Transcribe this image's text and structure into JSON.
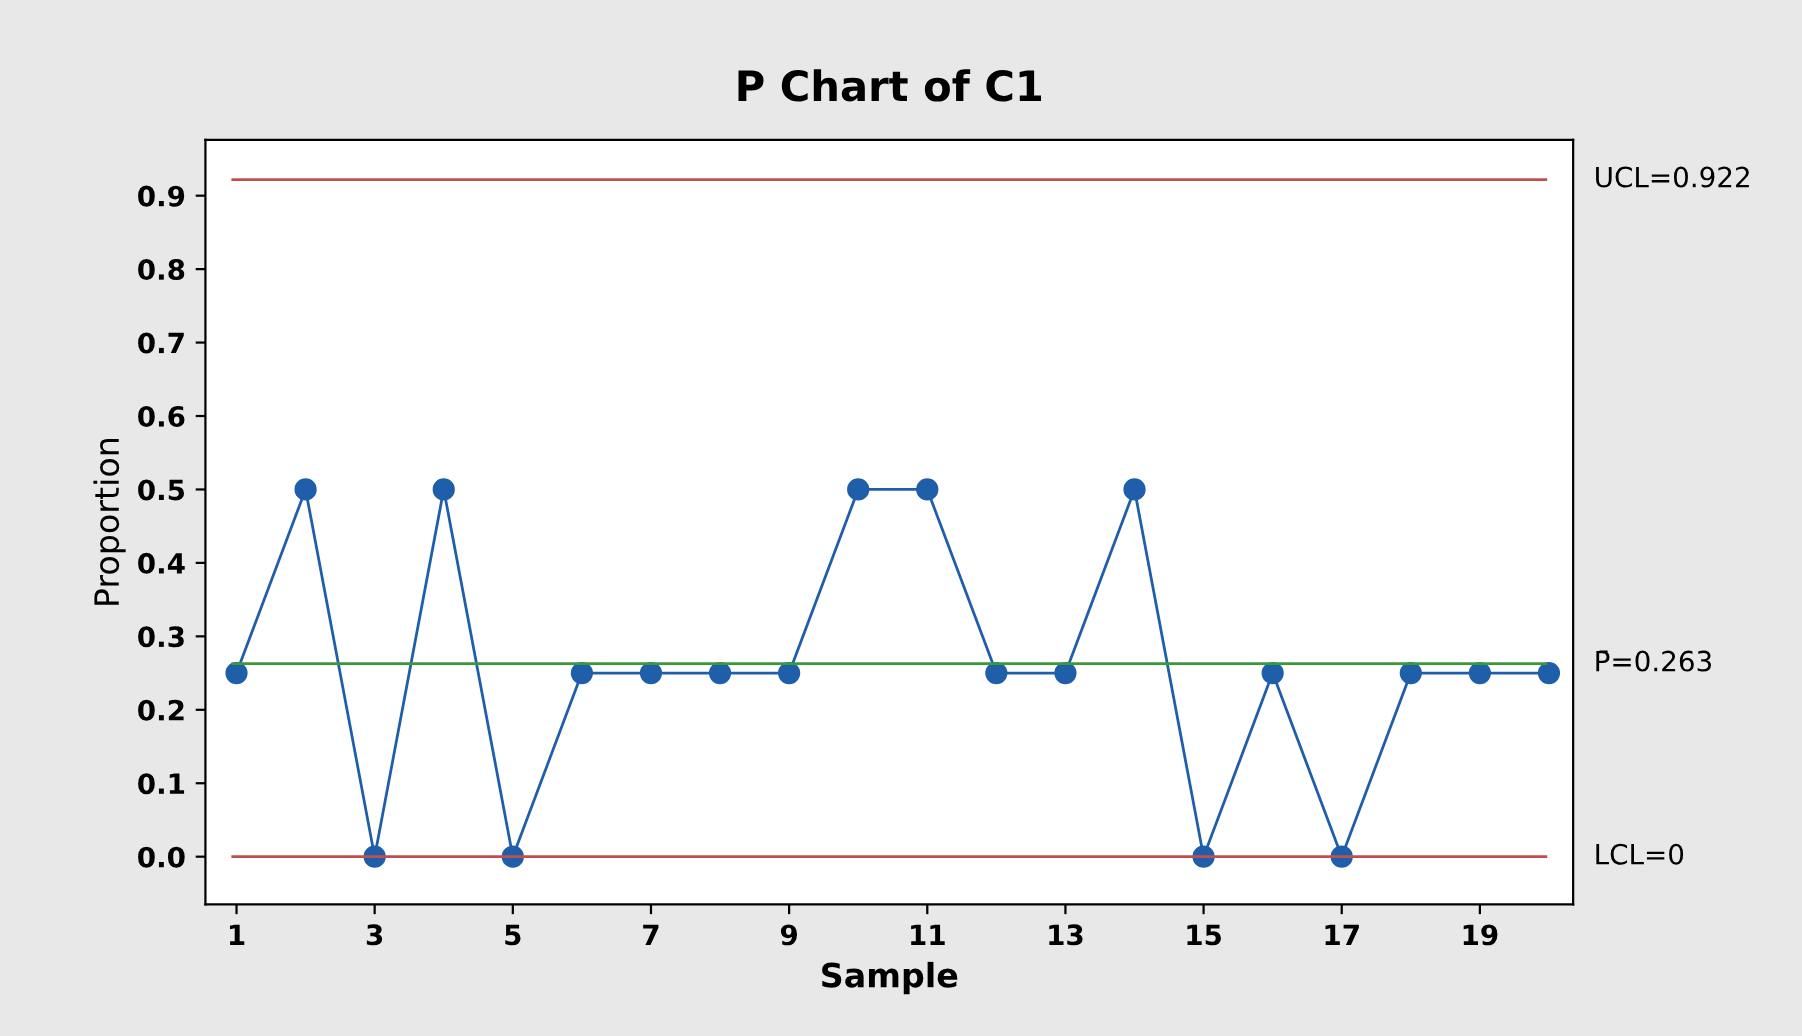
{
  "chart_data": {
    "type": "line",
    "title": "P Chart of C1",
    "xlabel": "Sample",
    "ylabel": "Proportion",
    "x": [
      1,
      2,
      3,
      4,
      5,
      6,
      7,
      8,
      9,
      10,
      11,
      12,
      13,
      14,
      15,
      16,
      17,
      18,
      19,
      20
    ],
    "series": [
      {
        "color": "#1f5faa",
        "values": [
          0.25,
          0.5,
          0,
          0.5,
          0,
          0.25,
          0.25,
          0.25,
          0.25,
          0.5,
          0.5,
          0.25,
          0.25,
          0.5,
          0,
          0.25,
          0,
          0.25,
          0.25,
          0.25
        ]
      }
    ],
    "xlim": [
      0.55,
      20.35
    ],
    "xticks": [
      1,
      3,
      5,
      7,
      9,
      11,
      13,
      15,
      17,
      19
    ],
    "ylim": [
      -0.065,
      0.976
    ],
    "yticks": [
      {
        "value": 0,
        "label": "0.0"
      },
      0.1,
      0.2,
      0.3,
      0.4,
      0.5,
      0.6,
      0.7,
      0.8,
      0.9
    ],
    "ref_lines": [
      {
        "axis": "y",
        "value": 0.922,
        "label": "UCL=0.922",
        "color": "#c0504d"
      },
      {
        "axis": "y",
        "value": 0.263,
        "label": "P̄=0.263",
        "color": "#3a9a3a"
      },
      {
        "axis": "y",
        "value": 0,
        "label": "LCL=0",
        "color": "#c0504d"
      }
    ],
    "marker": "circle",
    "line_style": "solid",
    "grid": false,
    "legend": false
  }
}
